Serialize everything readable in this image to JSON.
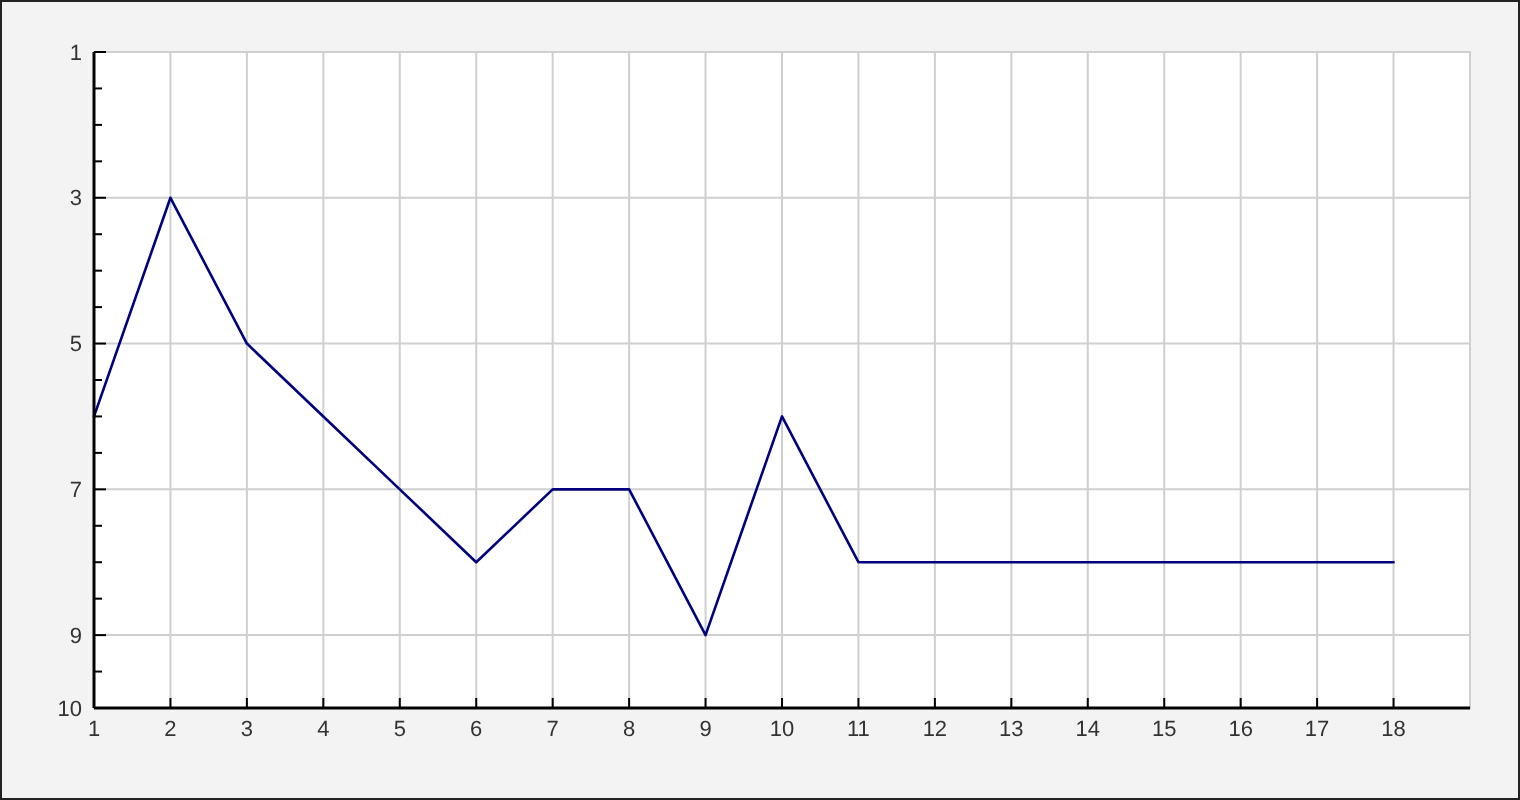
{
  "chart_data": {
    "type": "line",
    "x": [
      1,
      2,
      3,
      4,
      5,
      6,
      7,
      8,
      9,
      10,
      11,
      12,
      13,
      14,
      15,
      16,
      17,
      18
    ],
    "values": [
      6,
      3,
      5,
      6,
      7,
      8,
      7,
      7,
      9,
      6,
      8,
      8,
      8,
      8,
      8,
      8,
      8,
      8
    ],
    "color": "#00007f",
    "xlim": [
      1,
      19
    ],
    "xticks": [
      1,
      2,
      3,
      4,
      5,
      6,
      7,
      8,
      9,
      10,
      11,
      12,
      13,
      14,
      15,
      16,
      17,
      18
    ],
    "ylim": [
      10,
      1
    ],
    "yticks": [
      1,
      {
        "value": 1.5,
        "label": null
      },
      {
        "value": 2,
        "label": null
      },
      {
        "value": 2.5,
        "label": null
      },
      3,
      {
        "value": 3.5,
        "label": null
      },
      {
        "value": 4,
        "label": null
      },
      {
        "value": 4.5,
        "label": null
      },
      5,
      {
        "value": 5.5,
        "label": null
      },
      {
        "value": 6,
        "label": null
      },
      {
        "value": 6.5,
        "label": null
      },
      7,
      {
        "value": 7.5,
        "label": null
      },
      {
        "value": 8,
        "label": null
      },
      {
        "value": 8.5,
        "label": null
      },
      9,
      {
        "value": 9.5,
        "label": null
      },
      10
    ],
    "grid": true,
    "line_style": "solid"
  }
}
